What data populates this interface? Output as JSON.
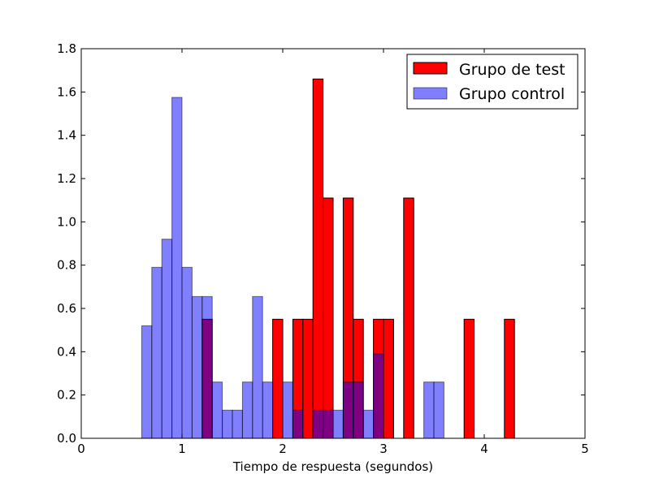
{
  "chart_data": {
    "type": "bar",
    "title": "",
    "xlabel": "Tiempo de respuesta (segundos)",
    "ylabel": "",
    "xlim": [
      0,
      5
    ],
    "ylim": [
      0,
      1.8
    ],
    "xticks": [
      0,
      1,
      2,
      3,
      4,
      5
    ],
    "xtick_labels": [
      "0",
      "1",
      "2",
      "3",
      "4",
      "5"
    ],
    "yticks": [
      0.0,
      0.2,
      0.4,
      0.6,
      0.8,
      1.0,
      1.2,
      1.4,
      1.6,
      1.8
    ],
    "ytick_labels": [
      "0.0",
      "0.2",
      "0.4",
      "0.6",
      "0.8",
      "1.0",
      "1.2",
      "1.4",
      "1.6",
      "1.8"
    ],
    "grid": false,
    "legend_position": "top-right",
    "bin_width": 0.1,
    "series": [
      {
        "name": "Grupo de test",
        "color": "#ff0000",
        "opacity": 1.0,
        "bins": [
          {
            "x0": 1.2,
            "y": 0.55
          },
          {
            "x0": 1.9,
            "y": 0.55
          },
          {
            "x0": 2.1,
            "y": 0.55
          },
          {
            "x0": 2.2,
            "y": 0.55
          },
          {
            "x0": 2.3,
            "y": 1.66
          },
          {
            "x0": 2.4,
            "y": 1.11
          },
          {
            "x0": 2.6,
            "y": 1.11
          },
          {
            "x0": 2.7,
            "y": 0.55
          },
          {
            "x0": 2.9,
            "y": 0.55
          },
          {
            "x0": 3.0,
            "y": 0.55
          },
          {
            "x0": 3.2,
            "y": 1.11
          },
          {
            "x0": 3.8,
            "y": 0.55
          },
          {
            "x0": 4.2,
            "y": 0.55
          }
        ]
      },
      {
        "name": "Grupo control",
        "color": "#0000ff",
        "opacity": 0.5,
        "bins": [
          {
            "x0": 0.6,
            "y": 0.52
          },
          {
            "x0": 0.7,
            "y": 0.79
          },
          {
            "x0": 0.8,
            "y": 0.92
          },
          {
            "x0": 0.9,
            "y": 1.575
          },
          {
            "x0": 1.0,
            "y": 0.79
          },
          {
            "x0": 1.1,
            "y": 0.655
          },
          {
            "x0": 1.2,
            "y": 0.655
          },
          {
            "x0": 1.3,
            "y": 0.26
          },
          {
            "x0": 1.4,
            "y": 0.13
          },
          {
            "x0": 1.5,
            "y": 0.13
          },
          {
            "x0": 1.6,
            "y": 0.26
          },
          {
            "x0": 1.7,
            "y": 0.655
          },
          {
            "x0": 1.8,
            "y": 0.26
          },
          {
            "x0": 2.0,
            "y": 0.26
          },
          {
            "x0": 2.1,
            "y": 0.13
          },
          {
            "x0": 2.3,
            "y": 0.13
          },
          {
            "x0": 2.4,
            "y": 0.13
          },
          {
            "x0": 2.5,
            "y": 0.13
          },
          {
            "x0": 2.6,
            "y": 0.26
          },
          {
            "x0": 2.7,
            "y": 0.26
          },
          {
            "x0": 2.8,
            "y": 0.13
          },
          {
            "x0": 2.9,
            "y": 0.39
          },
          {
            "x0": 3.4,
            "y": 0.26
          },
          {
            "x0": 3.5,
            "y": 0.26
          }
        ]
      }
    ]
  }
}
